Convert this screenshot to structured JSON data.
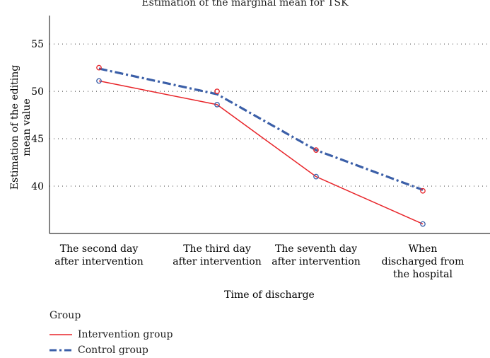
{
  "chart_data": {
    "type": "line",
    "title": "Estimation of the marginal mean for TSK",
    "xlabel": "Time of discharge",
    "ylabel": "Estimation of the editing mean value",
    "categories": [
      [
        "The second day",
        "after intervention"
      ],
      [
        "The third day",
        "after intervention"
      ],
      [
        "The seventh day",
        "after intervention"
      ],
      [
        "When",
        "discharged from",
        "the hospital"
      ]
    ],
    "yticks": [
      40,
      45,
      50,
      55
    ],
    "ylim": [
      35,
      58
    ],
    "grid": "horizontal-dotted",
    "legend_title": "Group",
    "series": [
      {
        "name": "Intervention group",
        "values": [
          51.1,
          48.6,
          41.0,
          36.0
        ],
        "color": "#e8252a",
        "style": "solid"
      },
      {
        "name": "Control group",
        "values": [
          52.4,
          49.7,
          43.8,
          39.6
        ],
        "color": "#3b5fa8",
        "style": "dash-dot"
      }
    ],
    "markers": {
      "red": [
        52.5,
        50.0,
        43.8,
        39.5
      ],
      "blue": [
        51.1,
        48.6,
        41.0,
        36.0
      ]
    }
  }
}
